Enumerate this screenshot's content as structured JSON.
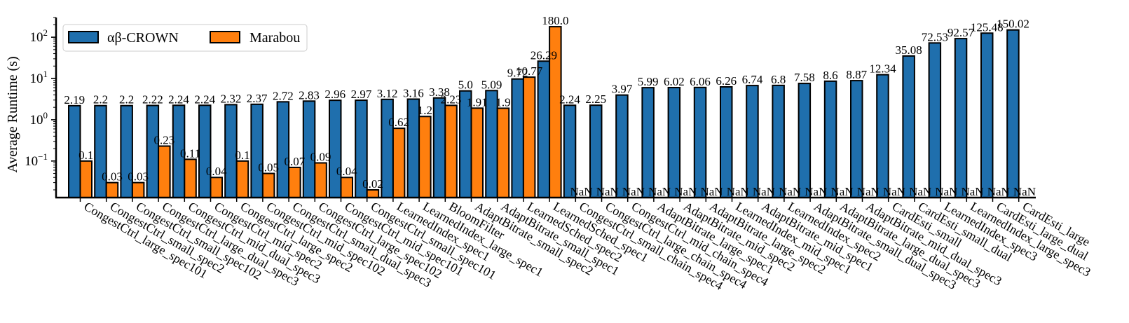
{
  "chart_data": {
    "type": "bar",
    "ylabel": "Average Runtime (s)",
    "yscale": "log",
    "ylim": [
      0.013,
      300
    ],
    "yticks": [
      {
        "value": 0.1,
        "base": "10",
        "exp": "−1"
      },
      {
        "value": 1,
        "base": "10",
        "exp": "0"
      },
      {
        "value": 10,
        "base": "10",
        "exp": "1"
      },
      {
        "value": 100,
        "base": "10",
        "exp": "2"
      }
    ],
    "legend_position": "top-left",
    "categories": [
      "CongestCtrl_large_spec101",
      "CongestCtrl_small_spec2",
      "CongestCtrl_small_spec102",
      "CongestCtrl_large_dual_spec3",
      "CongestCtrl_mid_dual_spec3",
      "CongestCtrl_mid_spec2",
      "CongestCtrl_large_spec2",
      "CongestCtrl_mid_spec102",
      "CongestCtrl_small_dual_spec3",
      "CongestCtrl_large_spec102",
      "CongestCtrl_mid_spec101",
      "CongestCtrl_small_spec101",
      "LearnedIndex_spec1",
      "LearnedIndex_large_spec1",
      "BloomFilter",
      "AdaptBitrate_small_spec2",
      "AdaptBitrate_small_spec1",
      "LearnedSched_spec2",
      "LearnedSched_spec1",
      "CongestCtrl_small_chain_spec4",
      "CongestCtrl_large_chain_spec4",
      "CongestCtrl_mid_chain_spec4",
      "AdaptBitrate_large_spec1",
      "AdaptBitrate_mid_spec2",
      "AdaptBitrate_large_spec2",
      "LearnedIndex_mid_spec1",
      "AdaptBitrate_mid_spec1",
      "LearnedIndex_spec2",
      "AdaptBitrate_small_dual_spec3",
      "AdaptBitrate_large_dual_spec3",
      "AdaptBitrate_mid_dual_spec3",
      "CardEsti_small",
      "CardEsti_small_dual",
      "LearnedIndex_spec3",
      "LearnedIndex_large_spec3",
      "CardEsti_large_dual",
      "CardEsti_large"
    ],
    "series": [
      {
        "name": "αβ-CROWN",
        "color": "#1f6fad",
        "values": [
          2.19,
          2.2,
          2.2,
          2.22,
          2.24,
          2.24,
          2.32,
          2.37,
          2.72,
          2.83,
          2.96,
          2.97,
          3.12,
          3.16,
          3.38,
          5.0,
          5.09,
          9.72,
          26.29,
          2.24,
          2.25,
          3.97,
          5.99,
          6.02,
          6.06,
          6.26,
          6.74,
          6.8,
          7.58,
          8.6,
          8.87,
          12.34,
          35.08,
          72.53,
          92.57,
          125.48,
          150.02
        ],
        "labels": [
          "2.19",
          "2.2",
          "2.2",
          "2.22",
          "2.24",
          "2.24",
          "2.32",
          "2.37",
          "2.72",
          "2.83",
          "2.96",
          "2.97",
          "3.12",
          "3.16",
          "3.38",
          "5.0",
          "5.09",
          "9.72",
          "26.29",
          "2.24",
          "2.25",
          "3.97",
          "5.99",
          "6.02",
          "6.06",
          "6.26",
          "6.74",
          "6.8",
          "7.58",
          "8.6",
          "8.87",
          "12.34",
          "35.08",
          "72.53",
          "92.57",
          "125.48",
          "150.02"
        ]
      },
      {
        "name": "Marabou",
        "color": "#ff7f0e",
        "values": [
          0.1,
          0.03,
          0.03,
          0.23,
          0.11,
          0.04,
          0.1,
          0.05,
          0.07,
          0.09,
          0.04,
          0.02,
          0.62,
          1.2,
          2.23,
          1.91,
          1.9,
          10.77,
          180.0,
          null,
          null,
          null,
          null,
          null,
          null,
          null,
          null,
          null,
          null,
          null,
          null,
          null,
          null,
          null,
          null,
          null,
          null
        ],
        "labels": [
          "0.1",
          "0.03",
          "0.03",
          "0.23",
          "0.11",
          "0.04",
          "0.1",
          "0.05",
          "0.07",
          "0.09",
          "0.04",
          "0.02",
          "0.62",
          "1.2",
          "2.23",
          "1.91",
          "1.9",
          "10.77",
          "180.0",
          "NaN",
          "NaN",
          "NaN",
          "NaN",
          "NaN",
          "NaN",
          "NaN",
          "NaN",
          "NaN",
          "NaN",
          "NaN",
          "NaN",
          "NaN",
          "NaN",
          "NaN",
          "NaN",
          "NaN",
          "NaN"
        ]
      }
    ]
  }
}
